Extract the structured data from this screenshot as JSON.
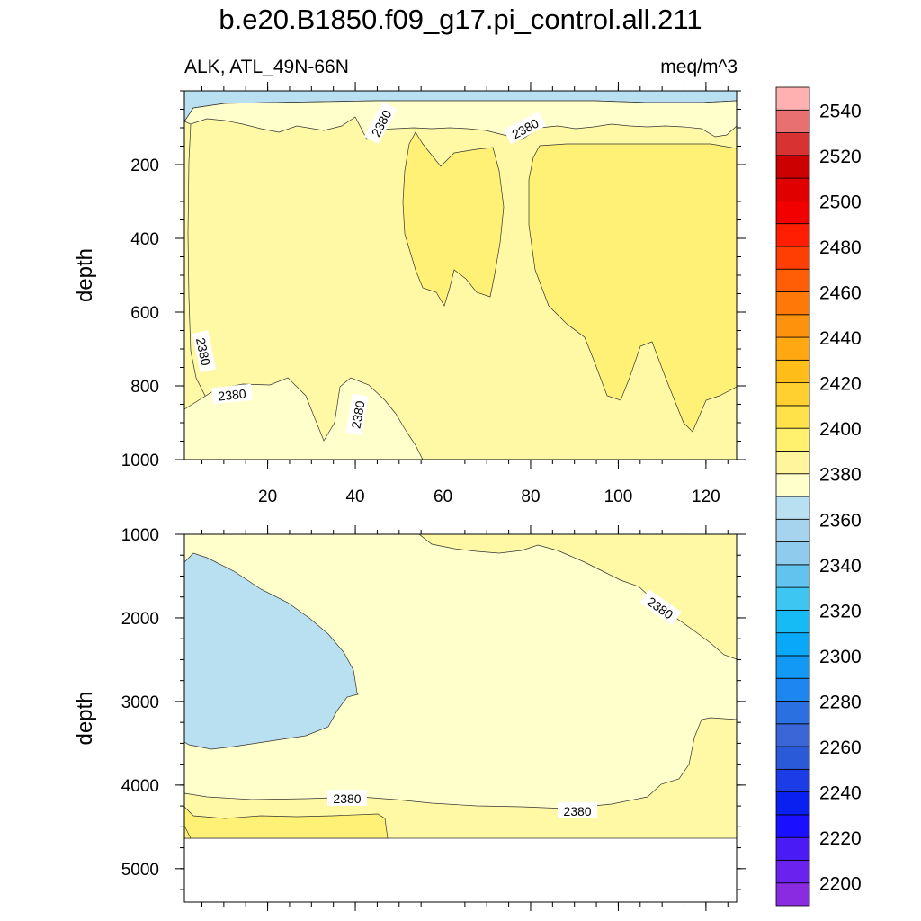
{
  "chart_data": {
    "type": "contour",
    "title": "b.e20.B1850.f09_g17.pi_control.all.211",
    "left_subtitle": "ALK, ATL_49N-66N",
    "right_subtitle": "meq/m^3",
    "x_range": [
      1,
      127
    ],
    "x_ticks": [
      20,
      40,
      60,
      80,
      100,
      120
    ],
    "panels": [
      {
        "name": "upper",
        "ylabel": "depth",
        "ylim": [
          1000,
          0
        ],
        "y_ticks": [
          200,
          400,
          600,
          800,
          1000
        ],
        "contour_labels": [
          "2380",
          "2380",
          "2380",
          "2380",
          "2380",
          "2380"
        ],
        "regions": [
          {
            "range": "2360-2370",
            "description": "thin surface layer"
          },
          {
            "range": "2370-2380",
            "description": "near-surface band and deep lower-left region"
          },
          {
            "range": "2380-2390",
            "description": "bulk of panel"
          },
          {
            "range": "2390-2400",
            "description": "cores near x 50-73 (depth 100-600) and x 80-127 (depth 100-950)"
          }
        ]
      },
      {
        "name": "lower",
        "ylabel": "depth",
        "ylim": [
          5400,
          1000
        ],
        "y_ticks": [
          1000,
          2000,
          3000,
          4000,
          5000
        ],
        "data_bottom_depth": 4600,
        "contour_labels": [
          "2380",
          "2380",
          "2380"
        ],
        "regions": [
          {
            "range": "2360-2370",
            "description": "lens on left side, depth 1300-3500"
          },
          {
            "range": "2370-2380",
            "description": "most of panel"
          },
          {
            "range": "2380-2390",
            "description": "upper-right and bottom layer"
          },
          {
            "range": "2390-2400",
            "description": "bottom-left patch below 4200"
          }
        ]
      }
    ],
    "colorbar": {
      "levels": [
        2200,
        2210,
        2220,
        2230,
        2240,
        2250,
        2260,
        2270,
        2280,
        2290,
        2300,
        2310,
        2320,
        2330,
        2340,
        2350,
        2360,
        2370,
        2380,
        2390,
        2400,
        2410,
        2420,
        2430,
        2440,
        2450,
        2460,
        2470,
        2480,
        2490,
        2500,
        2510,
        2520,
        2530,
        2540,
        2550
      ],
      "labels": [
        "2200",
        "2220",
        "2240",
        "2260",
        "2280",
        "2300",
        "2320",
        "2340",
        "2360",
        "2380",
        "2400",
        "2420",
        "2440",
        "2460",
        "2480",
        "2500",
        "2520",
        "2540"
      ],
      "colors": [
        "#8a2be2",
        "#6a22ee",
        "#4a1bf5",
        "#1a10ff",
        "#0a20f0",
        "#1b3ce6",
        "#2b5ad8",
        "#3a66d8",
        "#2a70e0",
        "#1e86f0",
        "#1298f5",
        "#0aa8f8",
        "#16baf5",
        "#3dc6f2",
        "#62c3ef",
        "#8ecbec",
        "#a6d4ee",
        "#b9e0f0",
        "#ffffcc",
        "#fff59c",
        "#fff06e",
        "#ffe24a",
        "#ffd030",
        "#ffbd1a",
        "#ffa812",
        "#ff920c",
        "#ff7808",
        "#ff5e06",
        "#ff3e04",
        "#ff1e02",
        "#f20000",
        "#e00000",
        "#cc0000",
        "#d93232",
        "#e87070",
        "#ffb0b0"
      ]
    }
  }
}
